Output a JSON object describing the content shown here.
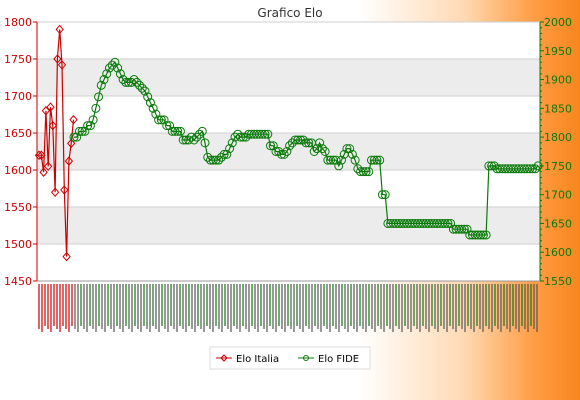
{
  "chart_data": {
    "type": "line",
    "title": "Grafico Elo",
    "y_left": {
      "min": 1450,
      "max": 1800,
      "ticks": [
        1450,
        1500,
        1550,
        1600,
        1650,
        1700,
        1750,
        1800
      ],
      "color": "#cc0000"
    },
    "y_right": {
      "min": 1550,
      "max": 2000,
      "ticks": [
        1550,
        1600,
        1650,
        1700,
        1750,
        1800,
        1850,
        1900,
        1950,
        2000
      ],
      "color": "#0a7a0a"
    },
    "grid": true,
    "legend_position": "bottom-center",
    "series": [
      {
        "name": "Elo Italia",
        "axis": "left",
        "color": "#cc0000",
        "marker": "diamond",
        "values": [
          1620,
          1620,
          1597,
          1680,
          1605,
          1685,
          1660,
          1570,
          1750,
          1790,
          1742,
          1573,
          1483,
          1612,
          1636,
          1668
        ]
      },
      {
        "name": "Elo FIDE",
        "axis": "right",
        "color": "#0a7a0a",
        "marker": "circle",
        "values": [
          1800,
          1800,
          1810,
          1810,
          1810,
          1820,
          1820,
          1830,
          1850,
          1870,
          1890,
          1900,
          1910,
          1920,
          1925,
          1930,
          1920,
          1910,
          1900,
          1895,
          1895,
          1895,
          1900,
          1895,
          1890,
          1885,
          1880,
          1870,
          1860,
          1850,
          1840,
          1830,
          1830,
          1830,
          1820,
          1820,
          1810,
          1810,
          1810,
          1810,
          1795,
          1795,
          1795,
          1800,
          1795,
          1800,
          1805,
          1810,
          1790,
          1765,
          1760,
          1760,
          1760,
          1760,
          1765,
          1770,
          1770,
          1780,
          1790,
          1800,
          1805,
          1800,
          1800,
          1800,
          1805,
          1805,
          1805,
          1805,
          1805,
          1805,
          1805,
          1805,
          1785,
          1785,
          1775,
          1775,
          1770,
          1770,
          1775,
          1785,
          1790,
          1795,
          1795,
          1795,
          1795,
          1790,
          1790,
          1790,
          1775,
          1780,
          1790,
          1780,
          1775,
          1760,
          1760,
          1760,
          1760,
          1750,
          1760,
          1770,
          1780,
          1780,
          1770,
          1760,
          1745,
          1740,
          1740,
          1740,
          1740,
          1760,
          1760,
          1760,
          1760,
          1700,
          1700,
          1650,
          1650,
          1650,
          1650,
          1650,
          1650,
          1650,
          1650,
          1650,
          1650,
          1650,
          1650,
          1650,
          1650,
          1650,
          1650,
          1650,
          1650,
          1650,
          1650,
          1650,
          1650,
          1650,
          1650,
          1640,
          1640,
          1640,
          1640,
          1640,
          1640,
          1630,
          1630,
          1630,
          1630,
          1630,
          1630,
          1630,
          1750,
          1750,
          1750,
          1745,
          1745,
          1745,
          1745,
          1745,
          1745,
          1745,
          1745,
          1745,
          1745,
          1745,
          1745,
          1745,
          1745,
          1745,
          1750
        ]
      }
    ]
  },
  "legend": {
    "items": [
      "Elo Italia",
      "Elo FIDE"
    ]
  }
}
